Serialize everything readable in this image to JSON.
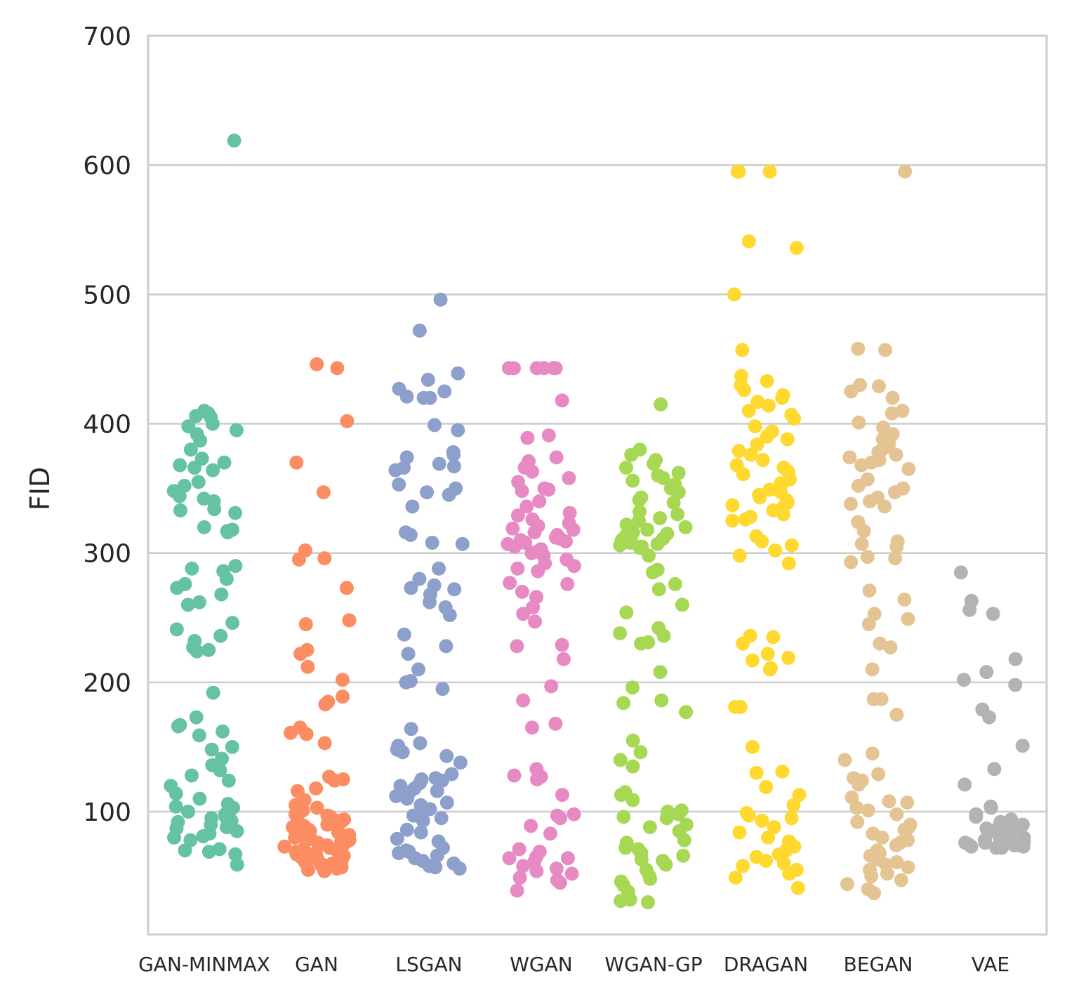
{
  "chart_data": {
    "type": "scatter",
    "subtype": "strip",
    "title": "",
    "xlabel": "",
    "ylabel": "FID",
    "ylim": [
      5,
      700
    ],
    "yticks": [
      100,
      200,
      300,
      400,
      500,
      600,
      700
    ],
    "grid": "horizontal",
    "categories": [
      "GAN-MINMAX",
      "GAN",
      "LSGAN",
      "WGAN",
      "WGAN-GP",
      "DRAGAN",
      "BEGAN",
      "VAE"
    ],
    "colors": [
      "#66c2a5",
      "#fc8d62",
      "#8da0cb",
      "#e78ac3",
      "#a6d854",
      "#ffd92f",
      "#e5c494",
      "#b3b3b3"
    ],
    "series": [
      {
        "name": "GAN-MINMAX",
        "values": [
          619,
          410,
          408,
          406,
          405,
          400,
          398,
          395,
          392,
          387,
          380,
          373,
          370,
          368,
          366,
          364,
          355,
          352,
          348,
          344,
          342,
          340,
          334,
          333,
          331,
          320,
          318,
          317,
          316,
          290,
          288,
          286,
          280,
          276,
          273,
          268,
          262,
          260,
          246,
          241,
          236,
          232,
          227,
          225,
          224,
          192,
          173,
          167,
          166,
          162,
          159,
          150,
          148,
          141,
          136,
          132,
          128,
          124,
          120,
          114,
          110,
          106,
          104,
          103,
          100,
          98,
          96,
          95,
          93,
          92,
          90,
          88,
          87,
          85,
          83,
          81,
          80,
          78,
          71,
          70,
          69,
          67,
          59
        ]
      },
      {
        "name": "GAN",
        "values": [
          446,
          443,
          402,
          370,
          347,
          302,
          296,
          295,
          273,
          248,
          245,
          225,
          222,
          212,
          202,
          189,
          185,
          183,
          165,
          161,
          160,
          153,
          127,
          125,
          124,
          118,
          116,
          109,
          105,
          103,
          101,
          100,
          98,
          97,
          96,
          95,
          94,
          93,
          92,
          91,
          90,
          89,
          88,
          87,
          86,
          85,
          84,
          83,
          82,
          81,
          80,
          79,
          78,
          77,
          76,
          75,
          74,
          73,
          72,
          71,
          70,
          69,
          68,
          67,
          66,
          65,
          64,
          63,
          62,
          61,
          60,
          59,
          58,
          57,
          56,
          55,
          54
        ]
      },
      {
        "name": "LSGAN",
        "values": [
          496,
          472,
          439,
          434,
          427,
          425,
          421,
          420,
          420,
          399,
          395,
          378,
          376,
          374,
          369,
          367,
          366,
          364,
          353,
          350,
          347,
          345,
          336,
          316,
          314,
          308,
          307,
          288,
          280,
          275,
          273,
          272,
          268,
          262,
          258,
          252,
          237,
          228,
          222,
          210,
          201,
          200,
          195,
          164,
          153,
          151,
          148,
          146,
          143,
          138,
          129,
          126,
          125,
          124,
          122,
          120,
          118,
          116,
          115,
          112,
          110,
          107,
          105,
          102,
          100,
          97,
          95,
          93,
          86,
          84,
          79,
          77,
          72,
          70,
          69,
          68,
          66,
          64,
          62,
          60,
          58,
          57,
          56
        ]
      },
      {
        "name": "WGAN",
        "values": [
          443,
          443,
          443,
          443,
          443,
          443,
          418,
          391,
          389,
          374,
          371,
          366,
          363,
          358,
          355,
          350,
          349,
          348,
          340,
          336,
          331,
          329,
          326,
          323,
          321,
          319,
          318,
          316,
          314,
          312,
          311,
          310,
          309,
          308,
          307,
          305,
          303,
          301,
          300,
          298,
          295,
          292,
          290,
          288,
          286,
          277,
          276,
          270,
          266,
          258,
          253,
          247,
          229,
          228,
          218,
          197,
          186,
          168,
          165,
          133,
          128,
          127,
          125,
          113,
          98,
          97,
          95,
          89,
          83,
          71,
          69,
          65,
          64,
          64,
          61,
          58,
          56,
          54,
          52,
          49,
          47,
          45,
          39
        ]
      },
      {
        "name": "WGAN-GP",
        "values": [
          415,
          380,
          376,
          372,
          369,
          366,
          362,
          360,
          358,
          356,
          353,
          350,
          347,
          343,
          341,
          339,
          332,
          330,
          327,
          325,
          322,
          320,
          318,
          316,
          315,
          313,
          311,
          310,
          309,
          308,
          307,
          306,
          305,
          304,
          298,
          287,
          285,
          276,
          272,
          260,
          254,
          242,
          238,
          236,
          231,
          230,
          208,
          196,
          186,
          184,
          177,
          155,
          146,
          140,
          135,
          115,
          113,
          109,
          101,
          100,
          98,
          96,
          95,
          90,
          88,
          85,
          78,
          76,
          72,
          71,
          68,
          66,
          63,
          62,
          59,
          55,
          50,
          48,
          46,
          43,
          38,
          32,
          31,
          30
        ]
      },
      {
        "name": "DRAGAN",
        "values": [
          595,
          595,
          595,
          541,
          536,
          500,
          457,
          437,
          433,
          430,
          426,
          422,
          420,
          417,
          414,
          410,
          407,
          404,
          398,
          394,
          390,
          388,
          384,
          379,
          376,
          372,
          368,
          366,
          363,
          361,
          357,
          354,
          352,
          349,
          347,
          345,
          343,
          341,
          339,
          337,
          335,
          333,
          330,
          328,
          326,
          325,
          313,
          309,
          306,
          302,
          298,
          292,
          236,
          235,
          230,
          222,
          219,
          217,
          211,
          210,
          181,
          181,
          150,
          131,
          130,
          119,
          113,
          105,
          99,
          97,
          95,
          93,
          88,
          84,
          80,
          77,
          73,
          70,
          67,
          65,
          62,
          60,
          58,
          55,
          52,
          49,
          41
        ]
      },
      {
        "name": "BEGAN",
        "values": [
          595,
          458,
          457,
          430,
          429,
          425,
          420,
          410,
          408,
          401,
          397,
          392,
          388,
          385,
          382,
          380,
          378,
          376,
          374,
          372,
          370,
          368,
          365,
          357,
          352,
          350,
          347,
          343,
          340,
          338,
          336,
          324,
          317,
          309,
          307,
          305,
          297,
          296,
          293,
          271,
          264,
          253,
          249,
          245,
          230,
          227,
          210,
          187,
          187,
          175,
          145,
          140,
          129,
          126,
          124,
          121,
          111,
          108,
          107,
          103,
          101,
          98,
          92,
          90,
          88,
          86,
          83,
          80,
          78,
          76,
          74,
          70,
          68,
          66,
          63,
          61,
          59,
          57,
          55,
          52,
          50,
          47,
          44,
          40,
          37
        ]
      },
      {
        "name": "VAE",
        "values": [
          285,
          263,
          256,
          253,
          218,
          208,
          202,
          198,
          179,
          173,
          151,
          133,
          121,
          104,
          103,
          98,
          96,
          94,
          92,
          91,
          90,
          89,
          88,
          87,
          86,
          85,
          84,
          83,
          82,
          81,
          80,
          80,
          79,
          79,
          78,
          78,
          77,
          77,
          76,
          76,
          75,
          75,
          74,
          74,
          73,
          73,
          72,
          72
        ]
      }
    ]
  }
}
